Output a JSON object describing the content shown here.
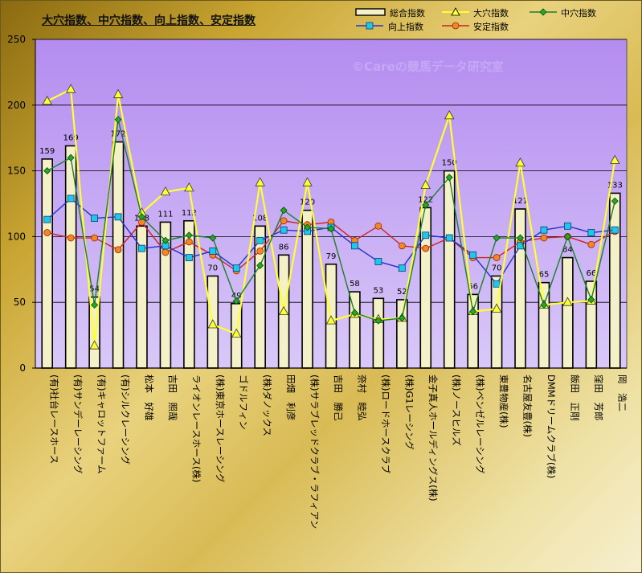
{
  "title": "大穴指数、中穴指数、向上指数、安定指数",
  "watermark": "©Careの競馬データ研究室",
  "colors": {
    "plot_bg_top": "#b48cf0",
    "plot_bg_bottom": "#d9c8f8",
    "bar_fill": "#f4f0c8",
    "bar_stroke": "#000000",
    "ana_dai": "#ffff33",
    "ana_chu": "#1a7f2a",
    "kojo": "#2233cc",
    "antei": "#cc2222",
    "watermark": "#c5a8f5"
  },
  "legend": {
    "sogo": "総合指数",
    "daiana": "大穴指数",
    "chuana": "中穴指数",
    "kojo": "向上指数",
    "antei": "安定指数"
  },
  "chart_data": {
    "type": "bar",
    "title": "大穴指数、中穴指数、向上指数、安定指数",
    "ylim": [
      0,
      250
    ],
    "yticks": [
      0,
      50,
      100,
      150,
      200,
      250
    ],
    "grid": true,
    "legend_position": "top-right",
    "categories": [
      "(有)社台レースホース",
      "(有)サンデーレーシング",
      "(有)キャロットファーム",
      "(有)シルクレーシング",
      "松本　好雄",
      "吉田　照哉",
      "ライオンレースホース(株)",
      "(株)東京ホースレーシング",
      "ゴドルフィン",
      "(株)ダノックス",
      "田畑　利彦",
      "(株)サラブレッドクラブ・ラフィアン",
      "吉田　勝己",
      "奈村　睦弘",
      "(株)ロードホースクラブ",
      "(株)G1レーシング",
      "金子真人ホールディングス(株)",
      "(株)ノースヒルズ",
      "(株)ベンゼルレーシング",
      "東豊物産(株)",
      "名古屋友豊(株)",
      "DMMドリームクラブ(株)",
      "飯田　正剛",
      "窪田　芳郎",
      "岡　浩二"
    ],
    "series": [
      {
        "name": "総合指数",
        "type": "bar",
        "values": [
          159,
          169,
          54,
          172,
          108,
          111,
          112,
          70,
          49,
          108,
          86,
          120,
          79,
          58,
          53,
          52,
          122,
          150,
          56,
          70,
          121,
          65,
          84,
          66,
          133
        ]
      },
      {
        "name": "大穴指数",
        "type": "line",
        "values": [
          203,
          212,
          17,
          208,
          118,
          134,
          137,
          33,
          26,
          141,
          43,
          141,
          36,
          41,
          37,
          38,
          139,
          192,
          43,
          45,
          156,
          48,
          50,
          51,
          158
        ]
      },
      {
        "name": "中穴指数",
        "type": "line",
        "values": [
          150,
          160,
          48,
          189,
          115,
          97,
          101,
          99,
          51,
          78,
          120,
          107,
          106,
          42,
          36,
          38,
          124,
          145,
          43,
          99,
          99,
          48,
          100,
          52,
          127
        ]
      },
      {
        "name": "向上指数",
        "type": "line",
        "values": [
          113,
          129,
          114,
          115,
          91,
          93,
          84,
          89,
          76,
          97,
          105,
          104,
          107,
          93,
          81,
          76,
          101,
          99,
          86,
          64,
          93,
          105,
          108,
          103,
          105
        ]
      },
      {
        "name": "安定指数",
        "type": "line",
        "values": [
          103,
          99,
          99,
          90,
          111,
          88,
          96,
          86,
          74,
          89,
          112,
          109,
          111,
          97,
          108,
          93,
          91,
          99,
          84,
          84,
          96,
          99,
          100,
          94,
          104
        ]
      }
    ]
  }
}
